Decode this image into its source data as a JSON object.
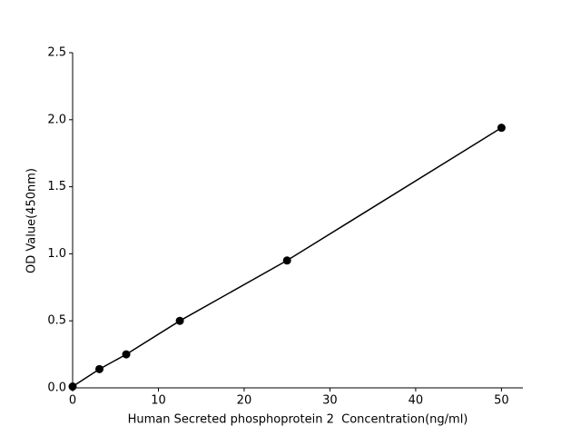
{
  "chart_data": {
    "type": "line",
    "xlabel": "Human Secreted phosphoprotein 2  Concentration(ng/ml)",
    "ylabel": "OD Value(450nm)",
    "x": [
      0,
      3.125,
      6.25,
      12.5,
      25,
      50
    ],
    "values": [
      0.01,
      0.14,
      0.25,
      0.5,
      0.95,
      1.94
    ],
    "color": "#000000",
    "xlim": [
      0,
      52.5
    ],
    "xticks": [
      0,
      10,
      20,
      30,
      40,
      50
    ],
    "ylim": [
      0,
      2.5
    ],
    "yticks": [
      {
        "value": 0,
        "label": "0.0"
      },
      {
        "value": 0.5,
        "label": "0.5"
      },
      {
        "value": 1,
        "label": "1.0"
      },
      {
        "value": 1.5,
        "label": "1.5"
      },
      {
        "value": 2,
        "label": "2.0"
      },
      {
        "value": 2.5,
        "label": "2.5"
      }
    ],
    "grid": false
  }
}
